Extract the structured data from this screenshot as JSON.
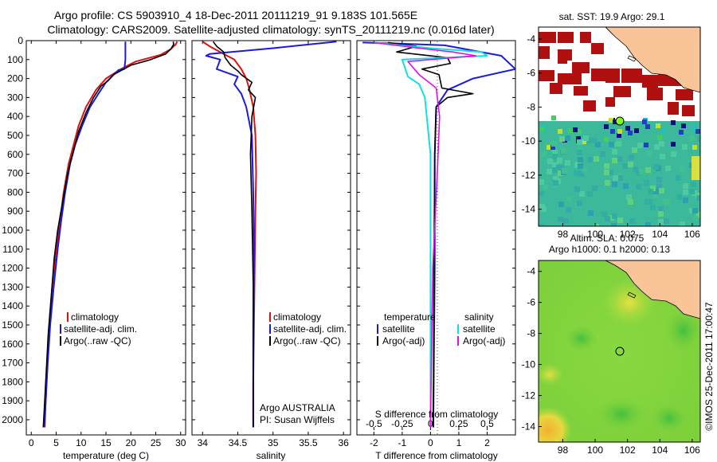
{
  "figure": {
    "title_line1": "Argo profile: CS 5903910_4 18-Dec-2011 20111219_91 9.183S 101.565E",
    "title_line2": "Climatology: CARS2009. Satellite-adjusted climatology: synTS_20111219.nc (0.016d later)",
    "credit": "©IMOS 25-Dec-2011 17:00:47"
  },
  "colors": {
    "climatology": "#e01010",
    "satellite": "#1a1ae0",
    "argo": "#000000",
    "argo_sal_adj": "#e010e0",
    "satellite_sal": "#10e0e0"
  },
  "chart_data": [
    {
      "type": "line",
      "id": "temperature",
      "xlabel": "temperature (deg C)",
      "ylabel": "",
      "xlim": [
        -1,
        31
      ],
      "ylim": [
        2080,
        0
      ],
      "xticks": [
        0,
        5,
        10,
        15,
        20,
        25,
        30
      ],
      "yticks": [
        0,
        100,
        200,
        300,
        400,
        500,
        600,
        700,
        800,
        900,
        1000,
        1100,
        1200,
        1300,
        1400,
        1500,
        1600,
        1700,
        1800,
        1900,
        2000
      ],
      "legend": [
        "climatology",
        "satellite-adj. clim.",
        "Argo(..raw -QC)"
      ],
      "series": [
        {
          "name": "climatology",
          "x": [
            29.3,
            29,
            28,
            26,
            21,
            18,
            15,
            13,
            11,
            9.5,
            8.5,
            7.5,
            6.5,
            5.8,
            5,
            4.2,
            3.6,
            3.2,
            2.9,
            2.7
          ],
          "y": [
            5,
            20,
            45,
            75,
            110,
            150,
            200,
            260,
            350,
            450,
            550,
            650,
            800,
            950,
            1100,
            1300,
            1500,
            1700,
            1900,
            2040
          ]
        },
        {
          "name": "satellite-adj. clim.",
          "x": [
            18.9,
            18.9,
            18.9,
            18.7,
            17.5,
            15,
            13.5,
            11.8,
            10.2,
            8.8,
            7.8,
            6.8,
            6,
            5.3,
            4.5,
            3.8,
            3.3,
            2.9,
            2.6
          ],
          "y": [
            5,
            50,
            100,
            150,
            155,
            220,
            280,
            350,
            450,
            550,
            650,
            800,
            950,
            1100,
            1300,
            1500,
            1700,
            1900,
            2040
          ]
        },
        {
          "name": "Argo(..raw -QC)",
          "x": [
            28.5,
            28.6,
            28,
            27,
            24,
            20,
            16.5,
            15.5,
            14,
            12.5,
            11,
            9.5,
            8.5,
            7.3,
            6.3,
            5.3,
            4.6,
            4,
            3.4,
            3,
            2.6,
            2.4
          ],
          "y": [
            5,
            20,
            45,
            70,
            100,
            130,
            180,
            210,
            240,
            300,
            380,
            480,
            580,
            700,
            850,
            1000,
            1150,
            1350,
            1550,
            1750,
            1950,
            2040
          ]
        }
      ]
    },
    {
      "type": "line",
      "id": "salinity",
      "xlabel": "salinity",
      "ylabel": "",
      "xlim": [
        33.85,
        36.1
      ],
      "ylim": [
        2080,
        0
      ],
      "xticks": [
        34,
        34.5,
        35,
        35.5,
        36
      ],
      "legend": [
        "climatology",
        "satellite-adj. clim.",
        "Argo(..raw -QC)"
      ],
      "annotation_line1": "Argo AUSTRALIA",
      "annotation_line2": "PI: Susan Wijffels",
      "series": [
        {
          "name": "climatology",
          "x": [
            34.0,
            34.1,
            34.3,
            34.45,
            34.55,
            34.62,
            34.66,
            34.72,
            34.75,
            34.76,
            34.75,
            34.74,
            34.73,
            34.72,
            34.72
          ],
          "y": [
            5,
            30,
            70,
            100,
            150,
            200,
            250,
            350,
            500,
            700,
            900,
            1200,
            1500,
            1800,
            2040
          ]
        },
        {
          "name": "satellite-adj. clim.",
          "x": [
            35.9,
            35.0,
            34.1,
            34.05,
            34.25,
            34.2,
            34.5,
            34.45,
            34.55,
            34.62,
            34.7,
            34.72,
            34.73,
            34.72,
            34.72
          ],
          "y": [
            5,
            40,
            70,
            80,
            100,
            150,
            190,
            230,
            280,
            350,
            500,
            800,
            1100,
            1500,
            2040
          ]
        },
        {
          "name": "Argo(..raw -QC)",
          "x": [
            34.15,
            34.2,
            34.3,
            34.32,
            34.4,
            34.5,
            34.55,
            34.7,
            34.65,
            34.75,
            34.7,
            34.68,
            34.7,
            34.72,
            34.72
          ],
          "y": [
            5,
            30,
            60,
            90,
            130,
            160,
            180,
            220,
            260,
            300,
            400,
            600,
            900,
            1300,
            2040
          ]
        }
      ]
    },
    {
      "type": "line",
      "id": "difference",
      "xlabel": "T difference from climatology",
      "xlabel_top": "S difference from climatology",
      "xlim": [
        -2.6,
        3.0
      ],
      "ylim": [
        2080,
        0
      ],
      "xticks": [
        -2,
        -1,
        0,
        1,
        2
      ],
      "xticks_top": [
        -0.5,
        -0.25,
        0,
        0.25,
        0.5
      ],
      "xticks_top_labels": [
        "-0.5",
        "-0.25",
        "0",
        "0.25",
        "0.5"
      ],
      "legend_header_temperature": "temperature",
      "legend_header_salinity": "salinity",
      "legend": [
        "satellite",
        "Argo(-adj)",
        "satellite",
        "Argo(-adj)"
      ],
      "series": [
        {
          "name": "temperature satellite",
          "x": [
            -2.4,
            -1.2,
            0.5,
            2.5,
            3.0,
            1.5,
            0.6,
            0.2,
            0.15,
            0.15,
            0.1
          ],
          "y": [
            10,
            15,
            25,
            80,
            150,
            200,
            260,
            350,
            600,
            1200,
            2040
          ]
        },
        {
          "name": "temperature Argo(-adj)",
          "x": [
            -1.5,
            -0.5,
            -1.2,
            0.6,
            0.7,
            -0.3,
            0.3,
            0.4,
            1.5,
            0.6,
            0.2,
            0.15,
            0.12,
            0.1
          ],
          "y": [
            10,
            30,
            60,
            90,
            120,
            150,
            180,
            250,
            280,
            300,
            350,
            600,
            1200,
            2040
          ]
        },
        {
          "name": "salinity satellite",
          "x": [
            -0.5,
            0,
            0.45,
            0.5,
            -0.25,
            -0.2,
            -0.1,
            -0.05,
            0,
            0
          ],
          "y": [
            10,
            40,
            60,
            80,
            100,
            190,
            230,
            300,
            600,
            2040
          ]
        },
        {
          "name": "salinity Argo(-adj)",
          "x": [
            -0.5,
            -0.1,
            0.2,
            0.4,
            -0.2,
            -0.1,
            0.05,
            0.08,
            0.06,
            0.02,
            0
          ],
          "y": [
            10,
            40,
            60,
            80,
            110,
            180,
            250,
            400,
            700,
            1200,
            2040
          ]
        }
      ]
    },
    {
      "type": "heatmap",
      "id": "sst_map",
      "title": "sat. SST: 19.9 Argo: 29.1",
      "xlim": [
        96.5,
        106.5
      ],
      "ylim": [
        -15,
        -3.3
      ],
      "xticks": [
        98,
        100,
        102,
        104,
        106
      ],
      "yticks": [
        -4,
        -6,
        -8,
        -10,
        -12,
        -14
      ],
      "argo_position": [
        101.565,
        -9.183
      ]
    },
    {
      "type": "heatmap",
      "id": "sla_map",
      "title_line1": "Altim. SLA: 0.075",
      "title_line2": "Argo h1000: 0.1 h2000: 0.13",
      "xlim": [
        96.5,
        106.5
      ],
      "ylim": [
        -15,
        -3.3
      ],
      "xticks": [
        98,
        100,
        102,
        104,
        106
      ],
      "yticks": [
        -4,
        -6,
        -8,
        -10,
        -12,
        -14
      ],
      "argo_position": [
        101.565,
        -9.183
      ]
    }
  ]
}
